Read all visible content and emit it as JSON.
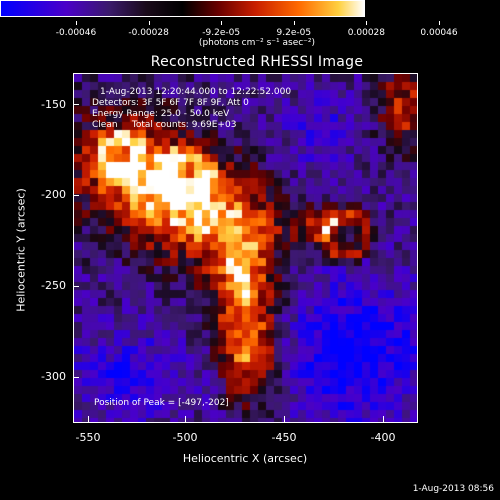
{
  "colorbar": {
    "tick_labels": [
      "-0.00046",
      "-0.00028",
      "-9.2e-05",
      "9.2e-05",
      "0.00028",
      "0.00046"
    ],
    "units_text": "(photons cm⁻² s⁻¹ asec⁻²)",
    "colors": [
      "#0000ff",
      "#4b00c8",
      "#000000",
      "#c81e00",
      "#ff6a00",
      "#ffffff"
    ]
  },
  "title": "Reconstructed RHESSI Image",
  "info": {
    "time_range": "1-Aug-2013 12:20:44.000 to 12:22:52.000",
    "detectors": "Detectors: 3F 5F 6F 7F 8F 9F, Att 0",
    "energy": "Energy Range: 25.0 - 50.0 keV",
    "clean": "Clean     Total counts: 9.69E+03",
    "peak": "Position of Peak = [-497,-202]"
  },
  "axes": {
    "x_title": "Heliocentric X (arcsec)",
    "y_title": "Heliocentric Y (arcsec)",
    "x_ticks": [
      "-550",
      "-500",
      "-450",
      "-400"
    ],
    "y_ticks": [
      "-150",
      "-200",
      "-250",
      "-300"
    ]
  },
  "footer": "1-Aug-2013 08:56"
}
